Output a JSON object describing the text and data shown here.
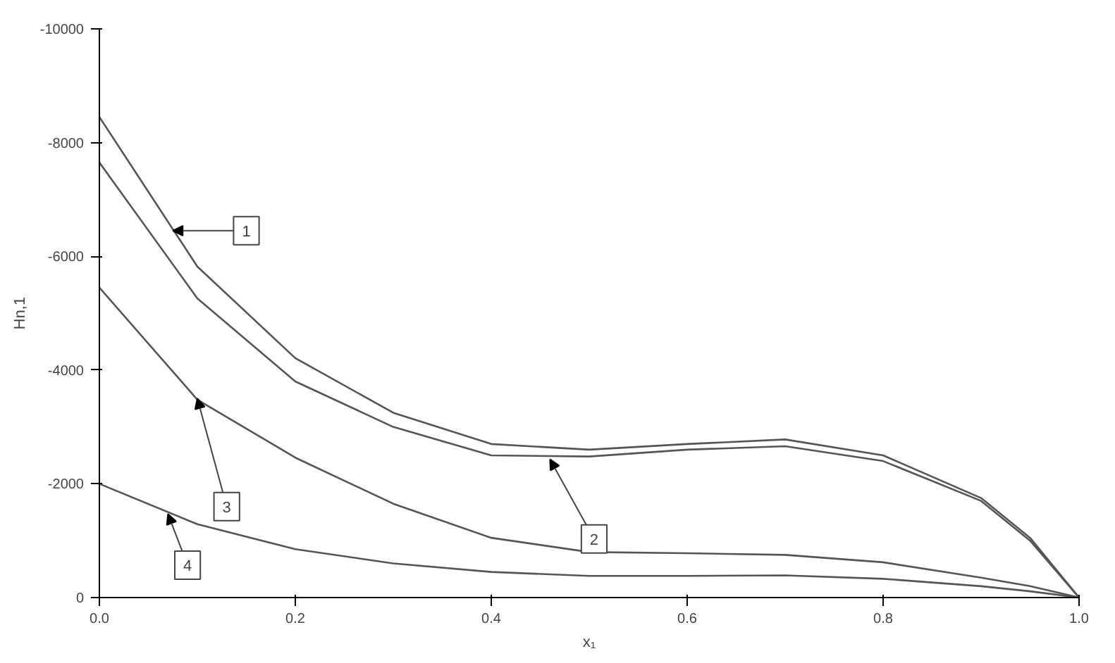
{
  "chart_data": {
    "type": "line",
    "xlabel": "x₁",
    "ylabel": "Hn,1",
    "x": [
      0,
      0.1,
      0.2,
      0.3,
      0.4,
      0.5,
      0.6,
      0.7,
      0.8,
      0.9,
      0.95,
      1.0
    ],
    "series": [
      {
        "color": "#555555",
        "values": [
          -8450,
          -5820,
          -4210,
          -3250,
          -2700,
          -2600,
          -2700,
          -2780,
          -2500,
          -1750,
          -1050,
          0
        ]
      },
      {
        "color": "#555555",
        "values": [
          -7650,
          -5260,
          -3800,
          -3000,
          -2500,
          -2480,
          -2600,
          -2660,
          -2400,
          -1700,
          -1000,
          0
        ]
      },
      {
        "color": "#555555",
        "values": [
          -5450,
          -3480,
          -2460,
          -1650,
          -1050,
          -800,
          -780,
          -750,
          -620,
          -350,
          -200,
          0
        ]
      },
      {
        "color": "#555555",
        "values": [
          -2000,
          -1290,
          -850,
          -600,
          -450,
          -380,
          -380,
          -390,
          -330,
          -200,
          -110,
          0
        ]
      }
    ],
    "annotations": [
      {
        "text": "1",
        "x": 0.075,
        "y": -6450
      },
      {
        "text": "2",
        "x": 0.46,
        "y": -2430
      },
      {
        "text": "3",
        "x": 0.1,
        "y": -3500
      },
      {
        "text": "4",
        "x": 0.07,
        "y": -1470
      }
    ],
    "xlim": [
      0,
      1.0
    ],
    "ylim": [
      0,
      -10000
    ],
    "xticks": [
      {
        "value": 0,
        "label": "0.0"
      },
      {
        "value": 0.2,
        "label": "0.2"
      },
      {
        "value": 0.4,
        "label": "0.4"
      },
      {
        "value": 0.6,
        "label": "0.6"
      },
      {
        "value": 0.8,
        "label": "0.8"
      },
      {
        "value": 1.0,
        "label": "1.0"
      }
    ],
    "yticks": [
      0,
      -2000,
      -4000,
      -6000,
      -8000,
      -10000
    ],
    "grid": false,
    "line_style": "solid",
    "marker": "none"
  }
}
